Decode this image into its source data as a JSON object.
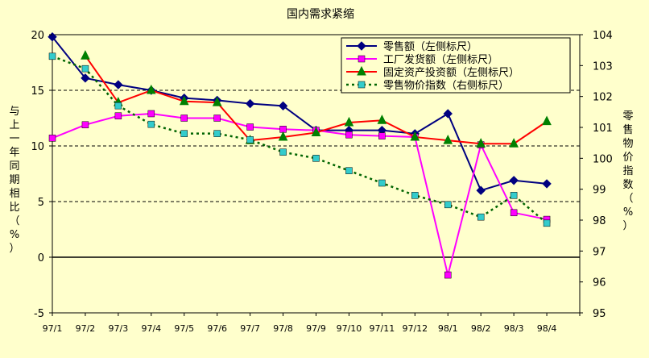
{
  "chart_data": {
    "type": "line",
    "title": "国内需求紧缩",
    "ylabel": "与上一年同期相比（%）",
    "y2label": "零售物价指数（%）",
    "xlabel": "",
    "categories": [
      "97/1",
      "97/2",
      "97/3",
      "97/4",
      "97/5",
      "97/6",
      "97/7",
      "97/8",
      "97/9",
      "97/10",
      "97/11",
      "97/12",
      "98/1",
      "98/2",
      "98/3",
      "98/4"
    ],
    "ylim": [
      -5,
      20
    ],
    "yticks": [
      -5,
      0,
      5,
      10,
      15,
      20
    ],
    "y2lim": [
      95,
      104
    ],
    "y2ticks": [
      95,
      96,
      97,
      98,
      99,
      100,
      101,
      102,
      103,
      104
    ],
    "grid": "dashed horizontal at 5, 10, 15; solid zero line",
    "legend_position": "top-right",
    "series": [
      {
        "name": "零售额（左侧标尺）",
        "axis": "left",
        "color": "#000080",
        "marker": "diamond",
        "line": "solid",
        "values": [
          19.8,
          16.1,
          15.5,
          15.0,
          14.3,
          14.1,
          13.8,
          13.6,
          11.4,
          11.4,
          11.4,
          11.1,
          12.9,
          6.0,
          6.9,
          6.6
        ]
      },
      {
        "name": "工厂发货额（左侧标尺）",
        "axis": "left",
        "color": "#ff00ff",
        "marker": "square",
        "line": "solid",
        "values": [
          10.7,
          11.9,
          12.7,
          12.9,
          12.5,
          12.5,
          11.7,
          11.5,
          11.4,
          11.0,
          10.9,
          10.8,
          -1.6,
          10.1,
          4.0,
          3.4
        ]
      },
      {
        "name": "固定资产投资额（左侧标尺）",
        "axis": "left",
        "color": "#ff0000",
        "marker_color": "#008000",
        "marker": "triangle",
        "line": "solid",
        "values": [
          null,
          18.1,
          13.9,
          15.0,
          14.0,
          13.9,
          10.5,
          10.8,
          11.2,
          12.1,
          12.3,
          10.8,
          10.5,
          10.2,
          10.2,
          12.2
        ]
      },
      {
        "name": "零售物价指数（右侧标尺）",
        "axis": "right",
        "color": "#006400",
        "marker_color": "#33cccc",
        "marker": "square",
        "line": "dotted",
        "values": [
          103.3,
          102.9,
          101.7,
          101.1,
          100.8,
          100.8,
          100.6,
          100.2,
          100.0,
          99.6,
          99.2,
          98.8,
          98.5,
          98.1,
          98.8,
          97.9
        ]
      }
    ]
  }
}
